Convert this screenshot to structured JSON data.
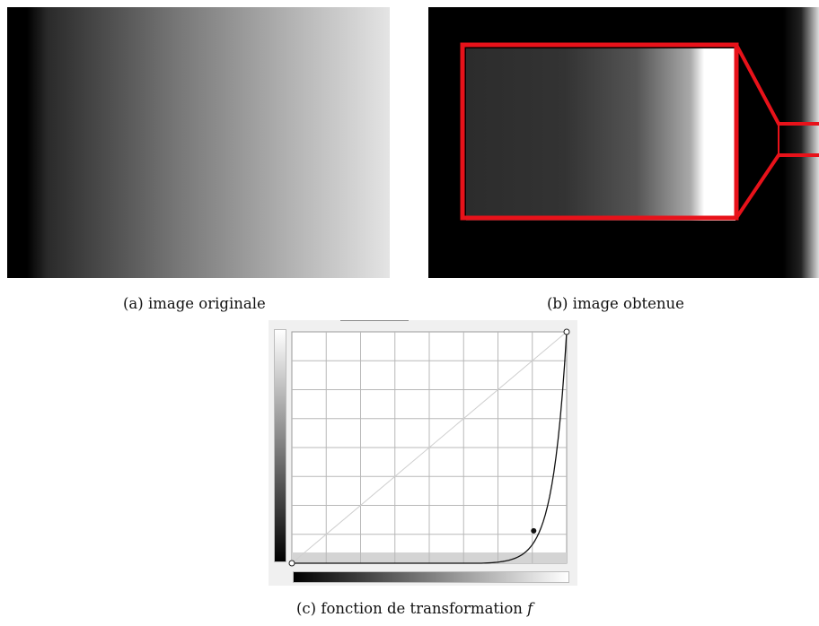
{
  "captions": {
    "a": "(a) image originale",
    "b": "(b) image obtenue",
    "c_prefix": "(c) fonction de transformation ",
    "c_symbol": "f"
  },
  "colors": {
    "highlight": "#e8121a",
    "curve": "#111111",
    "grid": "#b8b8b8",
    "identity_line": "#cfcfcf"
  },
  "curve_points": {
    "input_levels": [
      0,
      0.69,
      0.88,
      1.0
    ],
    "output_levels": [
      0,
      0,
      0.14,
      1.0
    ]
  }
}
